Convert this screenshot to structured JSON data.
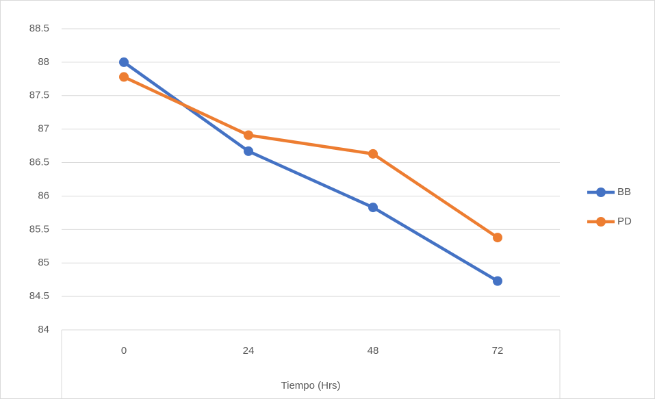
{
  "chart_data": {
    "type": "line",
    "categories": [
      "0",
      "24",
      "48",
      "72"
    ],
    "x_label": "Tiempo (Hrs)",
    "series": [
      {
        "name": "BB",
        "color": "#4472c4",
        "values": [
          88,
          86.67,
          85.83,
          84.73
        ]
      },
      {
        "name": "PD",
        "color": "#ed7d31",
        "values": [
          87.78,
          86.91,
          86.63,
          85.38
        ]
      }
    ],
    "ylim": [
      84,
      88.5
    ],
    "yticks": [
      84,
      84.5,
      85,
      85.5,
      86,
      86.5,
      87,
      87.5,
      88,
      88.5
    ],
    "grid": true,
    "legend": "right"
  }
}
